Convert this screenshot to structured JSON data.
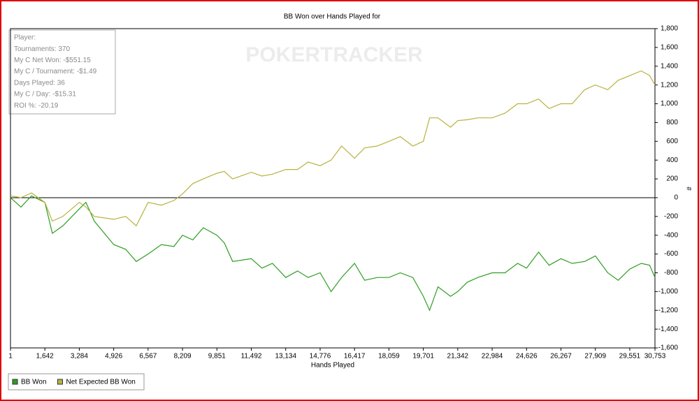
{
  "chart_data": {
    "type": "line",
    "title": "BB Won over Hands Played for",
    "watermark": "POKERTRACKER",
    "xlabel": "Hands Played",
    "ylabel": "#",
    "stats": [
      "Player:",
      "Tournaments: 370",
      "My C Net Won: -$551.15",
      "My C / Tournament: -$1.49",
      "Days Played: 36",
      "My C / Day: -$15.31",
      "ROI %: -20.19"
    ],
    "x": [
      1,
      500,
      1000,
      1642,
      2000,
      2500,
      3284,
      3600,
      4000,
      4926,
      5500,
      6000,
      6567,
      7200,
      7800,
      8209,
      8700,
      9200,
      9851,
      10200,
      10600,
      11492,
      12000,
      12500,
      13134,
      13700,
      14200,
      14776,
      15300,
      15800,
      16417,
      16900,
      17500,
      18059,
      18600,
      19200,
      19701,
      20000,
      20400,
      21000,
      21342,
      21800,
      22300,
      22984,
      23600,
      24200,
      24626,
      25200,
      25700,
      26267,
      26800,
      27400,
      27909,
      28500,
      29000,
      29551,
      30100,
      30500,
      30753
    ],
    "series": [
      {
        "name": "BB Won",
        "color": "#2e9e22",
        "values": [
          0,
          -100,
          20,
          -50,
          -380,
          -300,
          -120,
          -50,
          -250,
          -500,
          -550,
          -680,
          -600,
          -500,
          -520,
          -400,
          -450,
          -320,
          -400,
          -480,
          -680,
          -650,
          -750,
          -700,
          -850,
          -780,
          -850,
          -800,
          -1000,
          -850,
          -700,
          -880,
          -850,
          -850,
          -800,
          -850,
          -1050,
          -1200,
          -950,
          -1050,
          -1000,
          -900,
          -850,
          -800,
          -800,
          -700,
          -750,
          -580,
          -720,
          -650,
          -700,
          -680,
          -620,
          -800,
          -880,
          -760,
          -700,
          -720,
          -850
        ]
      },
      {
        "name": "Net Expected BB Won",
        "color": "#b7b23e",
        "values": [
          20,
          0,
          50,
          -50,
          -250,
          -200,
          -50,
          -100,
          -200,
          -230,
          -200,
          -300,
          -50,
          -80,
          -30,
          40,
          150,
          200,
          260,
          280,
          200,
          270,
          230,
          250,
          300,
          300,
          380,
          340,
          400,
          550,
          420,
          530,
          550,
          600,
          650,
          550,
          600,
          850,
          850,
          750,
          820,
          830,
          850,
          850,
          900,
          1000,
          1000,
          1050,
          950,
          1000,
          1000,
          1150,
          1200,
          1150,
          1250,
          1300,
          1350,
          1300,
          1200
        ]
      }
    ],
    "xlim": [
      1,
      30753
    ],
    "xticks": [
      1,
      {
        "value": 1642,
        "label": "1,642"
      },
      {
        "value": 3284,
        "label": "3,284"
      },
      {
        "value": 4926,
        "label": "4,926"
      },
      {
        "value": 6567,
        "label": "6,567"
      },
      {
        "value": 8209,
        "label": "8,209"
      },
      {
        "value": 9851,
        "label": "9,851"
      },
      {
        "value": 11492,
        "label": "11,492"
      },
      {
        "value": 13134,
        "label": "13,134"
      },
      {
        "value": 14776,
        "label": "14,776"
      },
      {
        "value": 16417,
        "label": "16,417"
      },
      {
        "value": 18059,
        "label": "18,059"
      },
      {
        "value": 19701,
        "label": "19,701"
      },
      {
        "value": 21342,
        "label": "21,342"
      },
      {
        "value": 22984,
        "label": "22,984"
      },
      {
        "value": 24626,
        "label": "24,626"
      },
      {
        "value": 26267,
        "label": "26,267"
      },
      {
        "value": 27909,
        "label": "27,909"
      },
      {
        "value": 29551,
        "label": "29,551"
      },
      {
        "value": 30753,
        "label": "30,753"
      }
    ],
    "ylim": [
      -1600,
      1800
    ],
    "yticks": [
      {
        "value": 1800,
        "label": "1,800"
      },
      {
        "value": 1600,
        "label": "1,600"
      },
      {
        "value": 1400,
        "label": "1,400"
      },
      {
        "value": 1200,
        "label": "1,200"
      },
      {
        "value": 1000,
        "label": "1,000"
      },
      800,
      600,
      400,
      200,
      0,
      -200,
      -400,
      -600,
      -800,
      {
        "value": -1000,
        "label": "-1,000"
      },
      {
        "value": -1200,
        "label": "-1,200"
      },
      {
        "value": -1400,
        "label": "-1,400"
      },
      {
        "value": -1600,
        "label": "-1,600"
      }
    ],
    "grid": false
  }
}
